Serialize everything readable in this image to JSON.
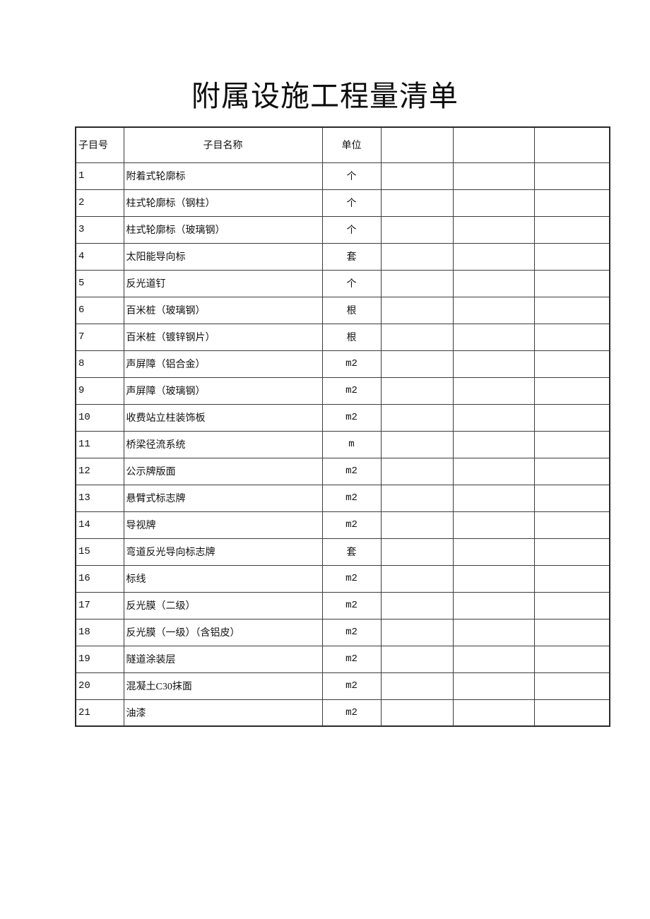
{
  "page": {
    "title": "附属设施工程量清单"
  },
  "table": {
    "headers": [
      "子目号",
      "子目名称",
      "单位",
      "",
      "",
      ""
    ],
    "rows": [
      {
        "id": "1",
        "name": "附着式轮廓标",
        "unit": "个"
      },
      {
        "id": "2",
        "name": "柱式轮廓标（钢柱）",
        "unit": "个"
      },
      {
        "id": "3",
        "name": "柱式轮廓标（玻璃钢）",
        "unit": "个"
      },
      {
        "id": "4",
        "name": "太阳能导向标",
        "unit": "套"
      },
      {
        "id": "5",
        "name": "反光道钉",
        "unit": "个"
      },
      {
        "id": "6",
        "name": "百米桩（玻璃钢）",
        "unit": "根"
      },
      {
        "id": "7",
        "name": "百米桩（镀锌钢片）",
        "unit": "根"
      },
      {
        "id": "8",
        "name": "声屏障（铝合金）",
        "unit": "m2"
      },
      {
        "id": "9",
        "name": "声屏障（玻璃钢）",
        "unit": "m2"
      },
      {
        "id": "10",
        "name": "收费站立柱装饰板",
        "unit": "m2"
      },
      {
        "id": "11",
        "name": "桥梁径流系统",
        "unit": "m"
      },
      {
        "id": "12",
        "name": "公示牌版面",
        "unit": "m2"
      },
      {
        "id": "13",
        "name": "悬臂式标志牌",
        "unit": "m2"
      },
      {
        "id": "14",
        "name": "导视牌",
        "unit": "m2"
      },
      {
        "id": "15",
        "name": "弯道反光导向标志牌",
        "unit": "套"
      },
      {
        "id": "16",
        "name": "标线",
        "unit": "m2"
      },
      {
        "id": "17",
        "name": "反光膜（二级）",
        "unit": "m2"
      },
      {
        "id": "18",
        "name": "反光膜（一级）（含铝皮）",
        "unit": "m2"
      },
      {
        "id": "19",
        "name": "隧道涂装层",
        "unit": "m2"
      },
      {
        "id": "20",
        "name": "混凝土C30抹面",
        "unit": "m2"
      },
      {
        "id": "21",
        "name": "油漆",
        "unit": "m2"
      }
    ]
  }
}
